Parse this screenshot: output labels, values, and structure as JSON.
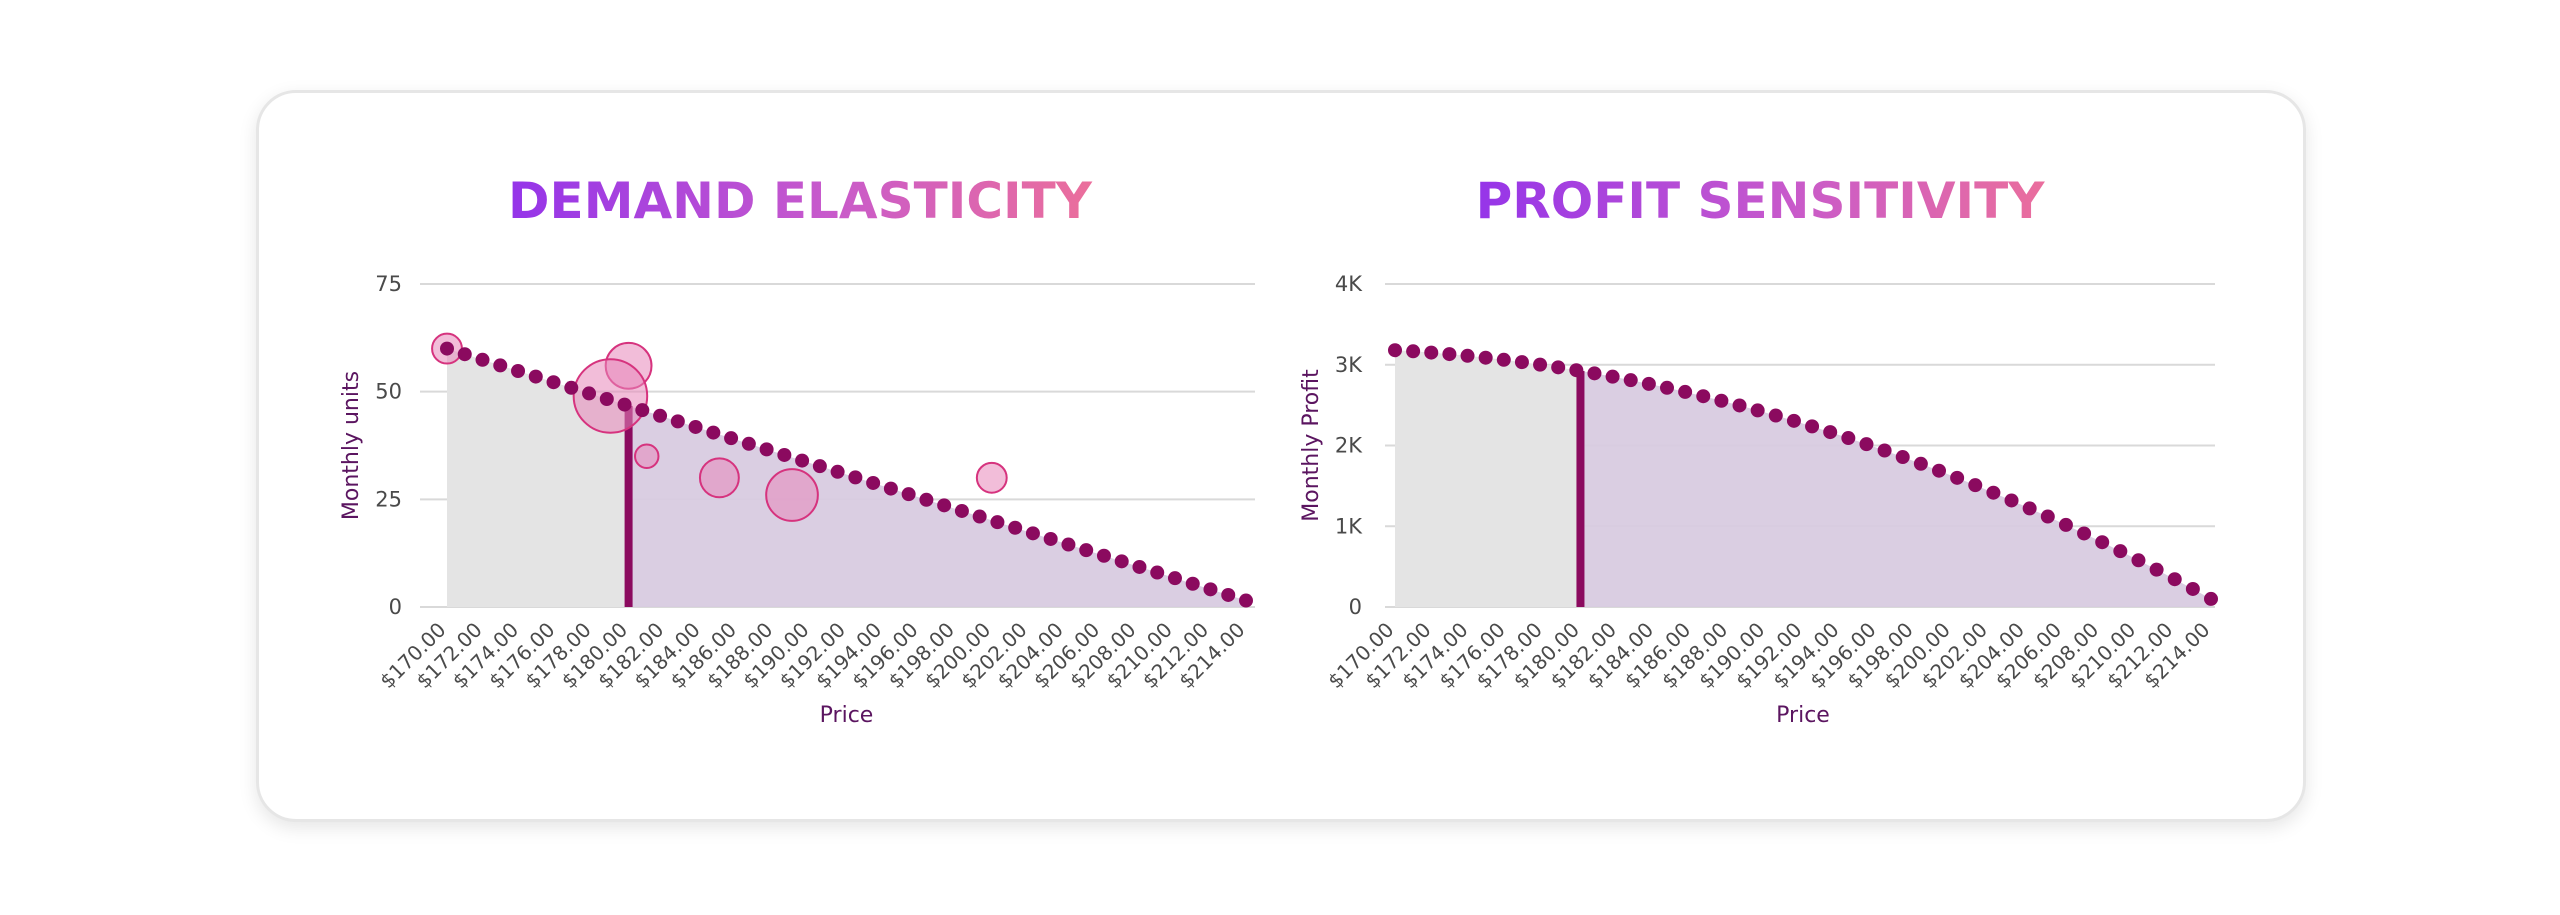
{
  "charts": [
    {
      "title": "DEMAND ELASTICITY",
      "type": "scatter",
      "xlabel": "Price",
      "ylabel": "Monthly units",
      "xlim": [
        170,
        214
      ],
      "ylim": [
        0,
        75
      ],
      "yticks": [
        0,
        25,
        50,
        75
      ],
      "ytick_labels": [
        "0",
        "25",
        "50",
        "75"
      ],
      "xtick_labels": [
        "$170.00",
        "$172.00",
        "$174.00",
        "$176.00",
        "$178.00",
        "$180.00",
        "$182.00",
        "$184.00",
        "$186.00",
        "$188.00",
        "$190.00",
        "$192.00",
        "$194.00",
        "$196.00",
        "$198.00",
        "$200.00",
        "$202.00",
        "$204.00",
        "$206.00",
        "$208.00",
        "$210.00",
        "$212.00",
        "$214.00"
      ],
      "curve": {
        "x_start": 170,
        "x_end": 214,
        "y_start": 60,
        "y_end": 1.5,
        "shape": "linear",
        "points": 46
      },
      "current_price": 180,
      "observations": [
        {
          "x": 170,
          "y": 60,
          "size": 1
        },
        {
          "x": 180,
          "y": 56,
          "size": 3
        },
        {
          "x": 179,
          "y": 49,
          "size": 9
        },
        {
          "x": 181,
          "y": 35,
          "size": 0.5
        },
        {
          "x": 185,
          "y": 30,
          "size": 2
        },
        {
          "x": 189,
          "y": 26,
          "size": 4
        },
        {
          "x": 200,
          "y": 30,
          "size": 1
        }
      ],
      "grid": true
    },
    {
      "title": "PROFIT SENSITIVITY",
      "type": "scatter",
      "xlabel": "Price",
      "ylabel": "Monthly Profit",
      "xlim": [
        170,
        214
      ],
      "ylim": [
        0,
        4000
      ],
      "yticks": [
        0,
        1000,
        2000,
        3000,
        4000
      ],
      "ytick_labels": [
        "0",
        "1K",
        "2K",
        "3K",
        "4K"
      ],
      "xtick_labels": [
        "$170.00",
        "$172.00",
        "$174.00",
        "$176.00",
        "$178.00",
        "$180.00",
        "$182.00",
        "$184.00",
        "$186.00",
        "$188.00",
        "$190.00",
        "$192.00",
        "$194.00",
        "$196.00",
        "$198.00",
        "$200.00",
        "$202.00",
        "$204.00",
        "$206.00",
        "$208.00",
        "$210.00",
        "$212.00",
        "$214.00"
      ],
      "curve": {
        "x_start": 170,
        "x_end": 214,
        "y_start": 3180,
        "y_end": 100,
        "shape": "quadratic",
        "points": 46
      },
      "current_price": 180,
      "grid": true
    }
  ],
  "colors": {
    "dot": "#8b0a5f",
    "marker_line": "#8b0a5f",
    "fill_left": "#e4e4e4",
    "fill_right": "#d8cbe0",
    "bubble_fill": "#e887b9",
    "bubble_stroke": "#d6337e",
    "grid": "#d9d9d9",
    "axis_label": "#5b1560"
  }
}
